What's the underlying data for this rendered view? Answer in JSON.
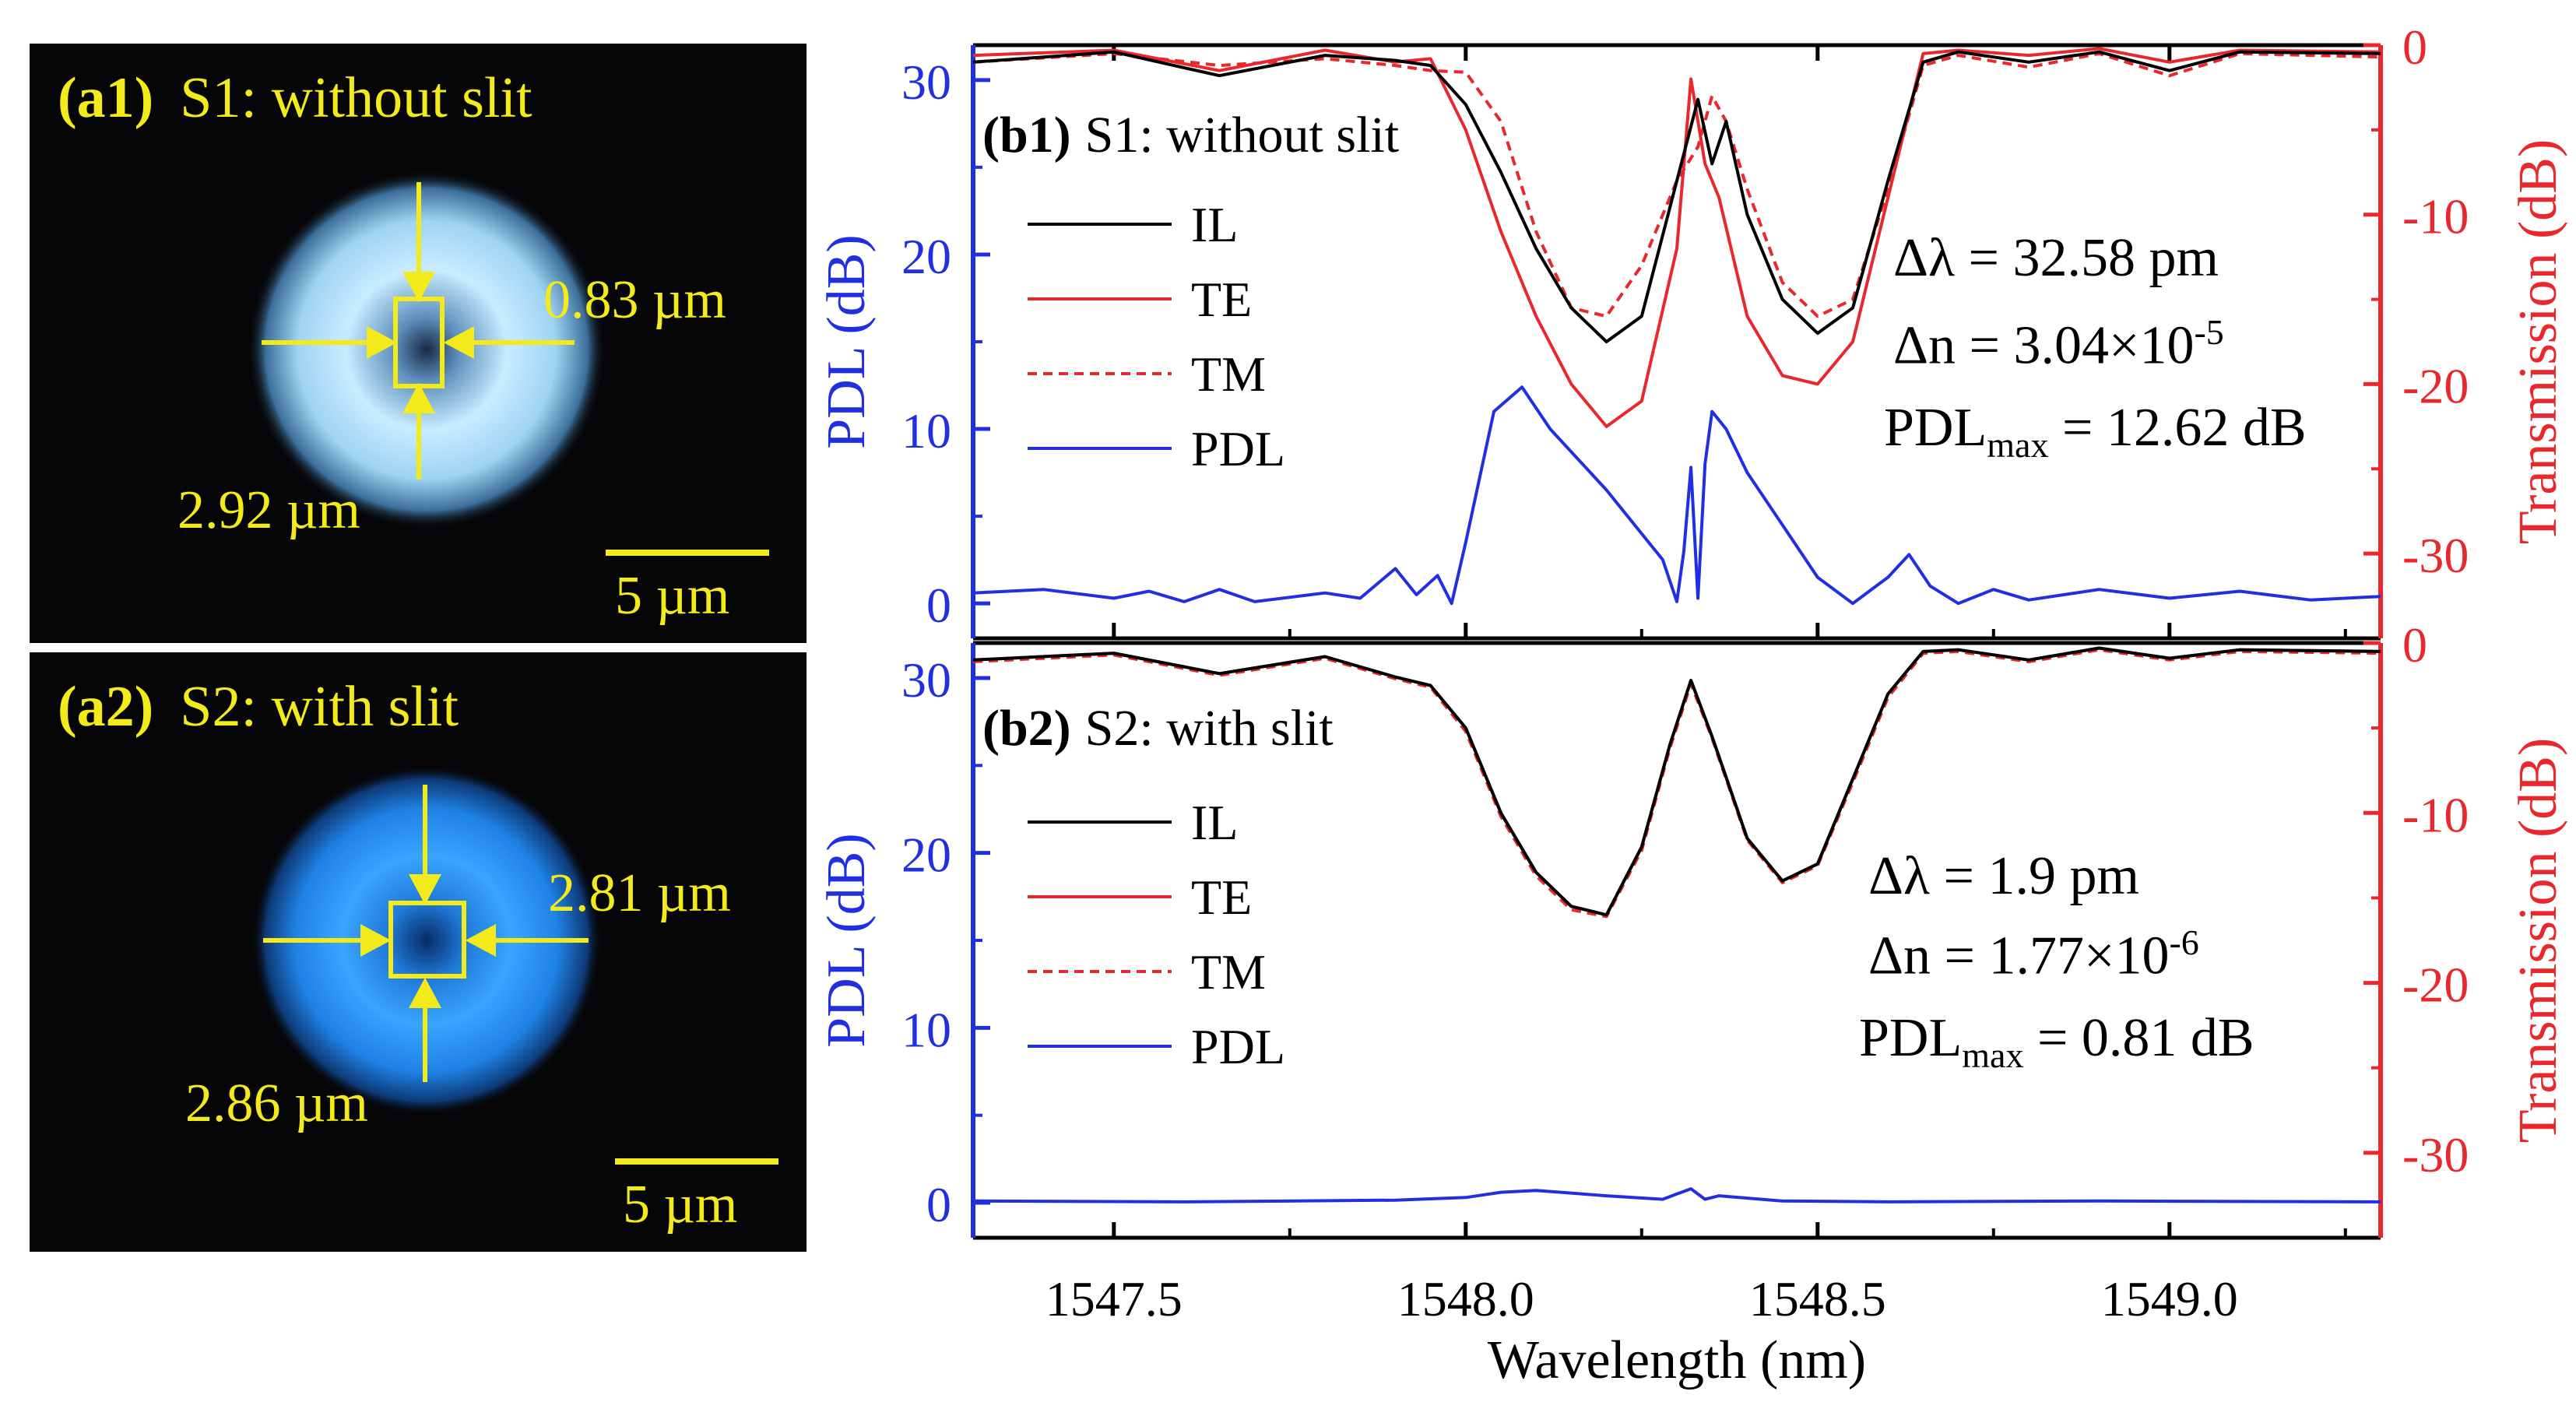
{
  "images": [
    {
      "id": "a1",
      "tag": "(a1)",
      "title": "S1: without slit",
      "width_label": "0.83 µm",
      "height_label": "2.92 µm",
      "scalebar_label": "5 µm",
      "color": "#bfe6ff"
    },
    {
      "id": "a2",
      "tag": "(a2)",
      "title": "S2: with slit",
      "width_label": "2.81 µm",
      "height_label": "2.86 µm",
      "scalebar_label": "5 µm",
      "color": "#1f8cff"
    }
  ],
  "chart_data": [
    {
      "type": "line",
      "id": "b1",
      "tag": "(b1)",
      "title": "S1: without slit",
      "xlabel": "Wavelength (nm)",
      "ylabel_left": "PDL (dB)",
      "ylabel_right": "Transmission (dB)",
      "xlim": [
        1547.3,
        1549.3
      ],
      "ylim_left": [
        -2,
        32
      ],
      "ylim_right": [
        -35,
        0
      ],
      "yticks_left": [
        "0",
        "10",
        "20",
        "30"
      ],
      "yticks_right": [
        "0",
        "-10",
        "-20",
        "-30"
      ],
      "xticks": [
        "1547.5",
        "1548.0",
        "1548.5",
        "1549.0"
      ],
      "legend": [
        "IL",
        "TE",
        "TM",
        "PDL"
      ],
      "annotations": {
        "dl_label": "Δλ = ",
        "dl_value": "32.58 pm",
        "dn_label": "Δn = ",
        "dn_base": "3.04×10",
        "dn_exp": "-5",
        "pdl_label": "PDL",
        "pdl_sub": "max",
        "pdl_value": " = 12.62 dB"
      },
      "series": [
        {
          "name": "IL",
          "axis": "right",
          "color": "#000000",
          "style": "solid",
          "x": [
            1547.3,
            1547.5,
            1547.65,
            1547.8,
            1547.9,
            1547.95,
            1548.0,
            1548.05,
            1548.1,
            1548.15,
            1548.2,
            1548.25,
            1548.3,
            1548.33,
            1548.35,
            1548.37,
            1548.4,
            1548.45,
            1548.5,
            1548.55,
            1548.6,
            1548.65,
            1548.7,
            1548.8,
            1548.9,
            1549.0,
            1549.1,
            1549.3
          ],
          "y": [
            -1.0,
            -0.4,
            -1.8,
            -0.6,
            -0.9,
            -1.2,
            -3.5,
            -7.5,
            -12.0,
            -15.5,
            -17.5,
            -16.0,
            -8.0,
            -3.2,
            -7.0,
            -4.5,
            -10.0,
            -15.0,
            -17.0,
            -15.5,
            -8.0,
            -1.0,
            -0.4,
            -1.0,
            -0.4,
            -1.5,
            -0.4,
            -0.5
          ]
        },
        {
          "name": "TE",
          "axis": "right",
          "color": "#e8282c",
          "style": "solid",
          "x": [
            1547.3,
            1547.5,
            1547.65,
            1547.8,
            1547.9,
            1547.95,
            1548.0,
            1548.05,
            1548.1,
            1548.15,
            1548.2,
            1548.25,
            1548.3,
            1548.32,
            1548.34,
            1548.36,
            1548.4,
            1548.45,
            1548.5,
            1548.55,
            1548.6,
            1548.65,
            1548.7,
            1548.8,
            1548.9,
            1549.0,
            1549.1,
            1549.3
          ],
          "y": [
            -0.6,
            -0.3,
            -1.5,
            -0.3,
            -1.0,
            -0.8,
            -5.0,
            -11.0,
            -16.0,
            -20.0,
            -22.5,
            -21.0,
            -12.0,
            -2.0,
            -7.0,
            -9.0,
            -16.0,
            -19.5,
            -20.0,
            -17.5,
            -9.0,
            -0.5,
            -0.3,
            -0.6,
            -0.2,
            -1.0,
            -0.3,
            -0.4
          ]
        },
        {
          "name": "TM",
          "axis": "right",
          "color": "#e8282c",
          "style": "dashed",
          "x": [
            1547.3,
            1547.5,
            1547.65,
            1547.8,
            1547.9,
            1547.95,
            1548.0,
            1548.05,
            1548.1,
            1548.15,
            1548.2,
            1548.25,
            1548.3,
            1548.33,
            1548.35,
            1548.37,
            1548.4,
            1548.45,
            1548.5,
            1548.55,
            1548.6,
            1548.65,
            1548.7,
            1548.8,
            1548.9,
            1549.0,
            1549.1,
            1549.3
          ],
          "y": [
            -1.0,
            -0.5,
            -1.2,
            -0.8,
            -1.2,
            -1.5,
            -1.6,
            -4.5,
            -11.0,
            -15.5,
            -16.0,
            -13.0,
            -8.0,
            -6.0,
            -3.0,
            -4.5,
            -8.5,
            -14.0,
            -16.0,
            -15.0,
            -8.5,
            -1.2,
            -0.6,
            -1.3,
            -0.5,
            -1.8,
            -0.5,
            -0.7
          ]
        },
        {
          "name": "PDL",
          "axis": "left",
          "color": "#2030e0",
          "style": "solid",
          "x": [
            1547.3,
            1547.4,
            1547.5,
            1547.55,
            1547.6,
            1547.65,
            1547.7,
            1547.8,
            1547.85,
            1547.9,
            1547.93,
            1547.96,
            1547.98,
            1548.0,
            1548.04,
            1548.08,
            1548.12,
            1548.2,
            1548.28,
            1548.3,
            1548.31,
            1548.32,
            1548.33,
            1548.34,
            1548.35,
            1548.37,
            1548.4,
            1548.45,
            1548.5,
            1548.55,
            1548.6,
            1548.63,
            1548.66,
            1548.7,
            1548.75,
            1548.8,
            1548.9,
            1549.0,
            1549.1,
            1549.2,
            1549.3
          ],
          "y": [
            0.6,
            0.8,
            0.3,
            0.7,
            0.1,
            0.8,
            0.1,
            0.6,
            0.3,
            2.0,
            0.5,
            1.6,
            0.0,
            3.5,
            11.0,
            12.4,
            10.0,
            6.5,
            2.5,
            0.1,
            3.0,
            7.8,
            0.3,
            8.0,
            11.0,
            10.0,
            7.5,
            4.5,
            1.5,
            0.0,
            1.5,
            2.8,
            1.0,
            0.0,
            0.8,
            0.2,
            0.8,
            0.3,
            0.7,
            0.2,
            0.4
          ]
        }
      ]
    },
    {
      "type": "line",
      "id": "b2",
      "tag": "(b2)",
      "title": "S2: with slit",
      "xlabel": "Wavelength (nm)",
      "ylabel_left": "PDL (dB)",
      "ylabel_right": "Transmission (dB)",
      "xlim": [
        1547.3,
        1549.3
      ],
      "ylim_left": [
        -2,
        32
      ],
      "ylim_right": [
        -35,
        0
      ],
      "yticks_left": [
        "0",
        "10",
        "20",
        "30"
      ],
      "yticks_right": [
        "0",
        "-10",
        "-20",
        "-30"
      ],
      "xticks": [
        "1547.5",
        "1548.0",
        "1548.5",
        "1549.0"
      ],
      "legend": [
        "IL",
        "TE",
        "TM",
        "PDL"
      ],
      "annotations": {
        "dl_label": "Δλ = ",
        "dl_value": "1.9 pm",
        "dn_label": "Δn = ",
        "dn_base": "1.77×10",
        "dn_exp": "-6",
        "pdl_label": "PDL",
        "pdl_sub": "max",
        "pdl_value": " = 0.81 dB"
      },
      "series": [
        {
          "name": "IL",
          "axis": "right",
          "color": "#000000",
          "style": "solid",
          "x": [
            1547.3,
            1547.5,
            1547.65,
            1547.8,
            1547.9,
            1547.95,
            1548.0,
            1548.05,
            1548.1,
            1548.15,
            1548.2,
            1548.25,
            1548.29,
            1548.32,
            1548.35,
            1548.4,
            1548.45,
            1548.5,
            1548.55,
            1548.6,
            1548.65,
            1548.7,
            1548.8,
            1548.9,
            1549.0,
            1549.1,
            1549.3
          ],
          "y": [
            -1.0,
            -0.6,
            -1.8,
            -0.8,
            -2.0,
            -2.5,
            -5.0,
            -10.0,
            -13.5,
            -15.5,
            -16.0,
            -12.0,
            -6.0,
            -2.2,
            -5.5,
            -11.5,
            -14.0,
            -13.0,
            -8.0,
            -3.0,
            -0.5,
            -0.4,
            -1.0,
            -0.3,
            -0.9,
            -0.4,
            -0.5
          ]
        },
        {
          "name": "TE",
          "axis": "right",
          "color": "#e8282c",
          "style": "solid",
          "x": [
            1547.3,
            1547.5,
            1547.65,
            1547.8,
            1547.9,
            1547.95,
            1548.0,
            1548.05,
            1548.1,
            1548.15,
            1548.2,
            1548.25,
            1548.29,
            1548.32,
            1548.35,
            1548.4,
            1548.45,
            1548.5,
            1548.55,
            1548.6,
            1548.65,
            1548.7,
            1548.8,
            1548.9,
            1549.0,
            1549.1,
            1549.3
          ],
          "y": [
            -1.0,
            -0.6,
            -1.8,
            -0.8,
            -2.0,
            -2.5,
            -5.0,
            -10.0,
            -13.5,
            -15.5,
            -16.0,
            -12.0,
            -6.0,
            -2.2,
            -5.5,
            -11.5,
            -14.0,
            -13.0,
            -8.0,
            -3.0,
            -0.5,
            -0.4,
            -1.0,
            -0.3,
            -0.9,
            -0.4,
            -0.5
          ]
        },
        {
          "name": "TM",
          "axis": "right",
          "color": "#e8282c",
          "style": "dashed",
          "x": [
            1547.3,
            1547.5,
            1547.65,
            1547.8,
            1547.9,
            1547.95,
            1548.0,
            1548.05,
            1548.1,
            1548.15,
            1548.2,
            1548.25,
            1548.29,
            1548.32,
            1548.35,
            1548.4,
            1548.45,
            1548.5,
            1548.55,
            1548.6,
            1548.65,
            1548.7,
            1548.8,
            1548.9,
            1549.0,
            1549.1,
            1549.3
          ],
          "y": [
            -1.1,
            -0.7,
            -1.9,
            -0.9,
            -2.1,
            -2.6,
            -5.2,
            -10.2,
            -13.7,
            -15.7,
            -16.1,
            -12.2,
            -6.2,
            -2.4,
            -5.6,
            -11.6,
            -14.1,
            -13.1,
            -8.2,
            -3.2,
            -0.6,
            -0.5,
            -1.1,
            -0.4,
            -1.0,
            -0.5,
            -0.6
          ]
        },
        {
          "name": "PDL",
          "axis": "left",
          "color": "#2030e0",
          "style": "solid",
          "x": [
            1547.3,
            1547.6,
            1547.9,
            1548.0,
            1548.05,
            1548.1,
            1548.2,
            1548.28,
            1548.3,
            1548.32,
            1548.34,
            1548.36,
            1548.45,
            1548.6,
            1548.9,
            1549.3
          ],
          "y": [
            0.1,
            0.05,
            0.15,
            0.3,
            0.6,
            0.7,
            0.4,
            0.2,
            0.5,
            0.8,
            0.2,
            0.4,
            0.1,
            0.05,
            0.1,
            0.05
          ]
        }
      ]
    }
  ]
}
